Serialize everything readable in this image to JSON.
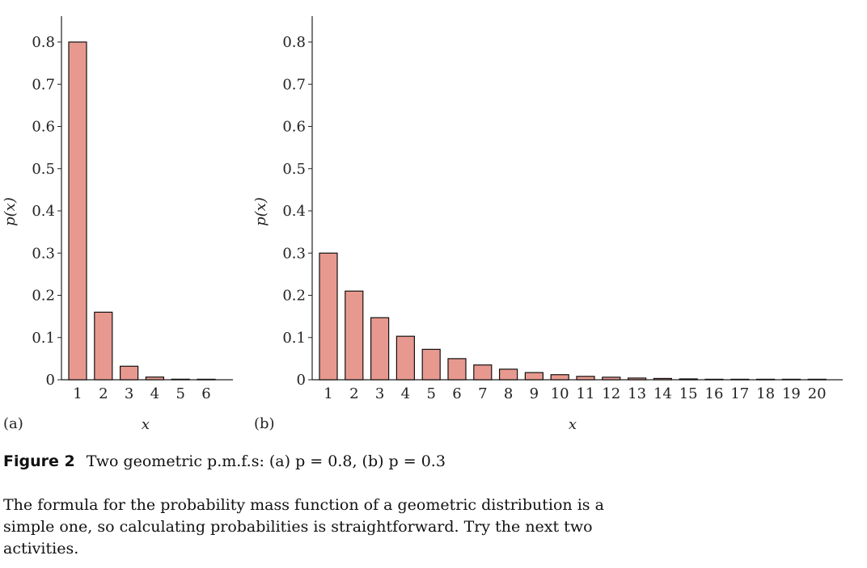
{
  "figure": {
    "label": "Figure 2",
    "caption": "Two geometric p.m.f.s: (a) p = 0.8, (b) p = 0.3"
  },
  "body_text": "The formula for the probability mass function of a geometric distribution is a simple one, so calculating probabilities is straightforward. Try the next two activities.",
  "chart_data": [
    {
      "type": "bar",
      "panel_label": "(a)",
      "xlabel": "x",
      "ylabel": "p(x)",
      "categories": [
        "1",
        "2",
        "3",
        "4",
        "5",
        "6"
      ],
      "values": [
        0.8,
        0.16,
        0.032,
        0.0064,
        0.0013,
        0.0003
      ],
      "ylim": [
        0,
        0.86
      ],
      "yticks": [
        0,
        0.1,
        0.2,
        0.3,
        0.4,
        0.5,
        0.6,
        0.7,
        0.8
      ],
      "ytick_labels": [
        "0",
        "0.1",
        "0.2",
        "0.3",
        "0.4",
        "0.5",
        "0.6",
        "0.7",
        "0.8"
      ],
      "bar_color": "#e8998f",
      "grid": false
    },
    {
      "type": "bar",
      "panel_label": "(b)",
      "xlabel": "x",
      "ylabel": "p(x)",
      "categories": [
        "1",
        "2",
        "3",
        "4",
        "5",
        "6",
        "7",
        "8",
        "9",
        "10",
        "11",
        "12",
        "13",
        "14",
        "15",
        "16",
        "17",
        "18",
        "19",
        "20"
      ],
      "values": [
        0.3,
        0.21,
        0.147,
        0.103,
        0.072,
        0.05,
        0.035,
        0.025,
        0.017,
        0.012,
        0.008,
        0.006,
        0.004,
        0.003,
        0.002,
        0.001,
        0.001,
        0.001,
        0.0005,
        0.0003
      ],
      "ylim": [
        0,
        0.86
      ],
      "yticks": [
        0,
        0.1,
        0.2,
        0.3,
        0.4,
        0.5,
        0.6,
        0.7,
        0.8
      ],
      "ytick_labels": [
        "0",
        "0.1",
        "0.2",
        "0.3",
        "0.4",
        "0.5",
        "0.6",
        "0.7",
        "0.8"
      ],
      "bar_color": "#e8998f",
      "grid": false
    }
  ]
}
